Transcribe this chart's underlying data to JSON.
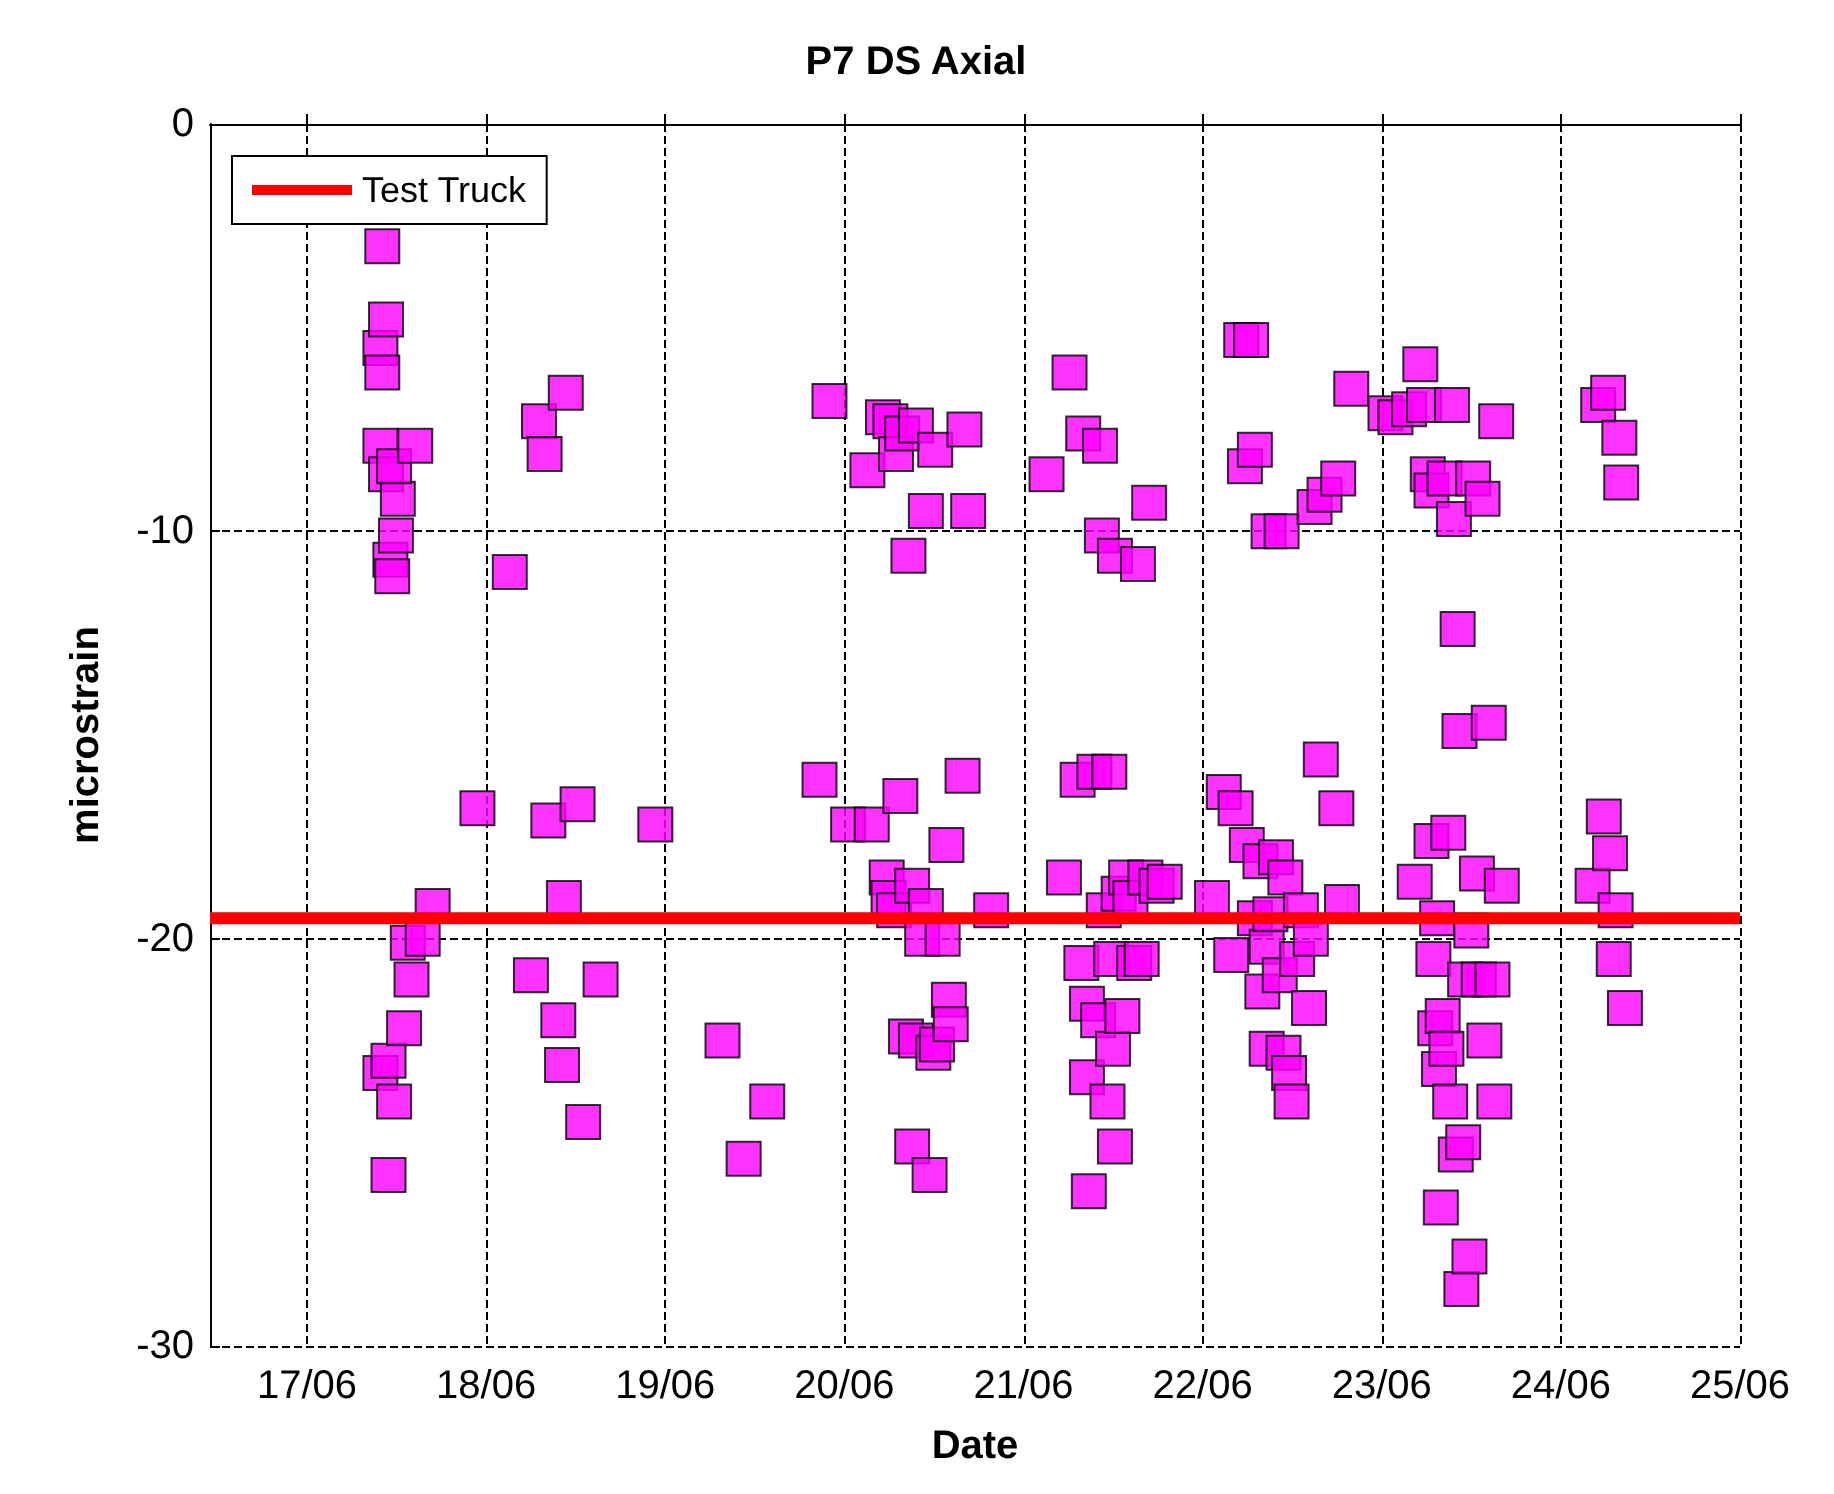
{
  "chart_data": {
    "type": "scatter",
    "title": "P7 DS Axial",
    "xlabel": "Date",
    "ylabel": "microstrain",
    "xlim": [
      "--06-16T11:00",
      "--06-25T00:00"
    ],
    "xticks": [
      {
        "value": "--06-17",
        "label": "17/06"
      },
      {
        "value": "--06-18",
        "label": "18/06"
      },
      {
        "value": "--06-19",
        "label": "19/06"
      },
      {
        "value": "--06-20",
        "label": "20/06"
      },
      {
        "value": "--06-21",
        "label": "21/06"
      },
      {
        "value": "--06-22",
        "label": "22/06"
      },
      {
        "value": "--06-23",
        "label": "23/06"
      },
      {
        "value": "--06-24",
        "label": "24/06"
      },
      {
        "value": "--06-25",
        "label": "25/06"
      }
    ],
    "ylim": [
      -30,
      0
    ],
    "yticks": [
      -30,
      -20,
      -10,
      0
    ],
    "grid": true,
    "legend": "top left",
    "marker": "square",
    "ref_lines": [
      {
        "axis": "y",
        "value": -19.5,
        "label": "Test Truck",
        "color": "#ff0000"
      }
    ],
    "series": [
      {
        "color": "#ff00ff",
        "x": [
          "--06-17T09:50",
          "--06-17T10:05",
          "--06-17T10:35",
          "--06-17T10:05",
          "--06-17T09:50",
          "--06-17T10:35",
          "--06-17T11:10",
          "--06-17T11:25",
          "--06-17T11:55",
          "--06-17T12:10",
          "--06-17T11:40",
          "--06-17T14:30",
          "--06-17T09:50",
          "--06-17T10:55",
          "--06-17T11:40",
          "--06-17T10:55",
          "--06-17T13:00",
          "--06-17T13:30",
          "--06-17T14:00",
          "--06-17T15:30",
          "--06-17T16:50",
          "--06-17T22:50",
          "--06-18T03:10",
          "--06-18T06:00",
          "--06-18T07:05",
          "--06-18T07:50",
          "--06-18T08:20",
          "--06-18T09:40",
          "--06-18T10:10",
          "--06-18T10:25",
          "--06-18T10:40",
          "--06-18T12:15",
          "--06-18T13:00",
          "--06-18T15:20",
          "--06-18T22:40",
          "--06-19T07:40",
          "--06-19T10:30",
          "--06-19T13:40",
          "--06-19T20:40",
          "--06-19T22:00",
          "--06-20T00:30",
          "--06-20T03:05",
          "--06-20T03:40",
          "--06-20T05:10",
          "--06-20T05:40",
          "--06-20T05:55",
          "--06-20T06:10",
          "--06-20T06:40",
          "--06-20T06:55",
          "--06-20T07:30",
          "--06-20T07:45",
          "--06-20T08:15",
          "--06-20T08:35",
          "--06-20T09:05",
          "--06-20T09:05",
          "--06-20T09:35",
          "--06-20T09:35",
          "--06-20T10:25",
          "--06-20T10:55",
          "--06-20T10:55",
          "--06-20T11:25",
          "--06-20T11:55",
          "--06-20T12:10",
          "--06-20T12:25",
          "--06-20T13:10",
          "--06-20T13:40",
          "--06-20T14:00",
          "--06-20T14:15",
          "--06-20T15:50",
          "--06-20T16:05",
          "--06-20T16:35",
          "--06-20T19:40",
          "--06-21T03:05",
          "--06-21T05:25",
          "--06-21T06:10",
          "--06-21T07:15",
          "--06-21T07:45",
          "--06-21T08:00",
          "--06-21T08:30",
          "--06-21T08:30",
          "--06-21T08:45",
          "--06-21T09:30",
          "--06-21T10:00",
          "--06-21T10:15",
          "--06-21T10:30",
          "--06-21T10:45",
          "--06-21T11:15",
          "--06-21T11:30",
          "--06-21T11:45",
          "--06-21T12:00",
          "--06-21T12:15",
          "--06-21T12:15",
          "--06-21T12:45",
          "--06-21T13:15",
          "--06-21T13:45",
          "--06-21T14:20",
          "--06-21T14:50",
          "--06-21T15:20",
          "--06-21T15:50",
          "--06-21T16:20",
          "--06-21T16:50",
          "--06-21T17:50",
          "--06-21T18:55",
          "--06-22T01:15",
          "--06-22T02:50",
          "--06-22T03:50",
          "--06-22T04:25",
          "--06-22T05:10",
          "--06-22T05:40",
          "--06-22T05:55",
          "--06-22T06:30",
          "--06-22T07:00",
          "--06-22T07:00",
          "--06-22T07:45",
          "--06-22T08:00",
          "--06-22T08:35",
          "--06-22T08:35",
          "--06-22T08:50",
          "--06-22T09:05",
          "--06-22T09:50",
          "--06-22T10:20",
          "--06-22T10:35",
          "--06-22T10:50",
          "--06-22T11:05",
          "--06-22T11:35",
          "--06-22T11:55",
          "--06-22T12:40",
          "--06-22T13:10",
          "--06-22T14:15",
          "--06-22T14:30",
          "--06-22T15:00",
          "--06-22T15:50",
          "--06-22T16:20",
          "--06-22T17:55",
          "--06-22T18:10",
          "--06-22T18:40",
          "--06-22T19:55",
          "--06-23T00:30",
          "--06-23T01:50",
          "--06-23T03:40",
          "--06-23T04:25",
          "--06-23T05:10",
          "--06-23T05:40",
          "--06-23T06:10",
          "--06-23T06:40",
          "--06-23T06:40",
          "--06-23T06:55",
          "--06-23T07:10",
          "--06-23T07:25",
          "--06-23T07:40",
          "--06-23T07:55",
          "--06-23T08:10",
          "--06-23T08:25",
          "--06-23T08:40",
          "--06-23T08:55",
          "--06-23T09:10",
          "--06-23T09:25",
          "--06-23T09:40",
          "--06-23T09:55",
          "--06-23T10:10",
          "--06-23T10:25",
          "--06-23T10:40",
          "--06-23T10:55",
          "--06-23T11:10",
          "--06-23T11:45",
          "--06-23T12:00",
          "--06-23T12:15",
          "--06-23T12:45",
          "--06-23T13:00",
          "--06-23T13:30",
          "--06-23T13:45",
          "--06-23T14:20",
          "--06-23T14:50",
          "--06-23T15:05",
          "--06-23T15:20",
          "--06-23T16:05",
          "--06-24T04:15",
          "--06-24T05:00",
          "--06-24T05:45",
          "--06-24T06:20",
          "--06-24T06:35",
          "--06-24T07:05",
          "--06-24T07:20",
          "--06-24T07:50",
          "--06-24T08:05",
          "--06-24T08:35"
        ],
        "values": [
          -5.5,
          -3.0,
          -4.8,
          -6.1,
          -7.9,
          -8.6,
          -10.7,
          -11.1,
          -10.1,
          -9.2,
          -8.4,
          -7.9,
          -23.3,
          -23.0,
          -24.0,
          -25.8,
          -22.2,
          -20.1,
          -21.0,
          -20.0,
          -19.2,
          -16.8,
          -11.0,
          -20.9,
          -7.3,
          -8.1,
          -17.1,
          -22.0,
          -23.1,
          -19.0,
          -6.6,
          -16.7,
          -24.5,
          -21.0,
          -17.2,
          -22.5,
          -25.4,
          -24.0,
          -16.1,
          -6.8,
          -17.2,
          -8.5,
          -17.2,
          -7.2,
          -18.5,
          -19.0,
          -7.3,
          -19.3,
          -8.1,
          -16.5,
          -7.6,
          -22.4,
          -10.6,
          -18.7,
          -25.1,
          -22.5,
          -7.4,
          -20.0,
          -9.5,
          -19.2,
          -25.8,
          -22.8,
          -8.0,
          -22.6,
          -20.0,
          -17.7,
          -21.5,
          -22.1,
          -16.0,
          -7.5,
          -9.5,
          -19.3,
          -8.6,
          -18.5,
          -6.1,
          -16.1,
          -20.6,
          -7.6,
          -21.6,
          -23.4,
          -26.2,
          -15.9,
          -22.0,
          -7.9,
          -10.1,
          -19.3,
          -24.0,
          -15.9,
          -20.5,
          -22.7,
          -10.6,
          -25.1,
          -18.9,
          -21.9,
          -18.5,
          -19.0,
          -20.6,
          -10.8,
          -20.5,
          -18.5,
          -9.3,
          -18.7,
          -18.6,
          -19.0,
          -16.4,
          -20.4,
          -16.8,
          -5.3,
          -8.4,
          -17.7,
          -5.3,
          -8.0,
          -19.5,
          -18.1,
          -21.3,
          -22.7,
          -20.2,
          -10.0,
          -19.4,
          -18.0,
          -20.9,
          -10.0,
          -22.8,
          -18.5,
          -23.3,
          -24.0,
          -20.5,
          -19.3,
          -21.7,
          -20.0,
          -9.4,
          -15.6,
          -9.1,
          -16.8,
          -8.7,
          -19.1,
          -6.5,
          -7.1,
          -7.2,
          -7.0,
          -18.6,
          -5.9,
          -6.9,
          -8.6,
          -9.0,
          -17.6,
          -20.5,
          -22.2,
          -19.5,
          -23.2,
          -26.6,
          -21.9,
          -8.7,
          -22.7,
          -17.4,
          -24.0,
          -6.9,
          -9.7,
          -25.3,
          -12.4,
          -14.9,
          -28.6,
          -25.0,
          -21.0,
          -27.8,
          -19.8,
          -8.7,
          -18.4,
          -21.0,
          -9.2,
          -22.5,
          -14.7,
          -21.0,
          -24.0,
          -7.3,
          -18.7,
          -18.7,
          -6.9,
          -17.0,
          -6.6,
          -17.9,
          -20.5,
          -19.3,
          -7.7,
          -8.8,
          -21.7
        ]
      }
    ]
  }
}
